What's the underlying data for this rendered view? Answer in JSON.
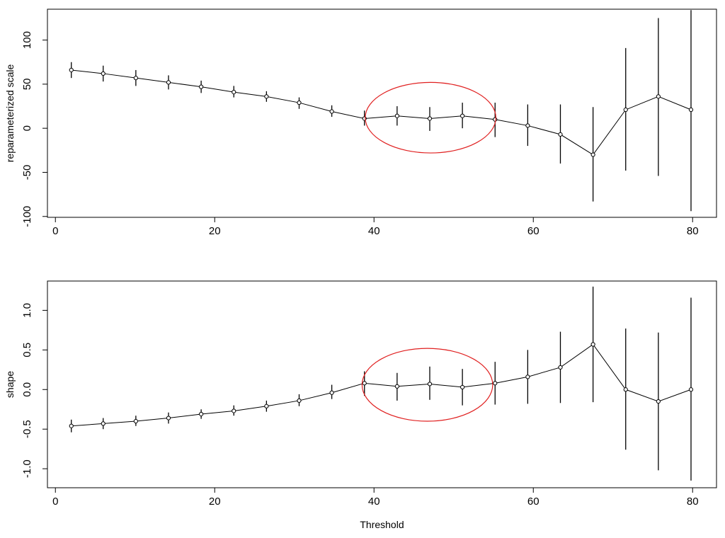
{
  "chart_data": [
    {
      "type": "line",
      "panel": "top",
      "title": "",
      "xlabel": "",
      "ylabel": "reparameterized scale",
      "xlim": [
        -1,
        83
      ],
      "ylim": [
        -101,
        135
      ],
      "x_ticks": [
        0,
        20,
        40,
        60,
        80
      ],
      "y_ticks": [
        -100,
        -50,
        0,
        50,
        100
      ],
      "grid": false,
      "series": [
        {
          "x": [
            2,
            6,
            10.1,
            14.2,
            18.3,
            22.4,
            26.5,
            30.6,
            34.7,
            38.8,
            42.9,
            47.0,
            51.1,
            55.2,
            59.3,
            63.4,
            67.5,
            71.6,
            75.7,
            79.8
          ],
          "values": [
            66,
            62,
            57,
            52,
            47,
            41,
            36,
            29,
            19,
            11,
            14,
            11,
            14,
            10,
            3,
            -7,
            -30,
            21,
            36,
            21
          ],
          "lower": [
            57,
            53,
            48,
            44,
            40,
            35,
            30,
            22,
            13,
            3,
            3,
            -3,
            0,
            -10,
            -20,
            -40,
            -83,
            -48,
            -54,
            -94
          ],
          "upper": [
            75,
            71,
            66,
            60,
            54,
            48,
            42,
            35,
            26,
            20,
            25,
            24,
            29,
            29,
            27,
            27,
            24,
            91,
            125,
            134
          ]
        }
      ],
      "annotation": {
        "shape": "ellipse",
        "color": "#e02020",
        "center": [
          47.1,
          12
        ],
        "radius_x_data": 8.2,
        "radius_y_data": 40
      }
    },
    {
      "type": "line",
      "panel": "bottom",
      "title": "",
      "xlabel": "Threshold",
      "ylabel": "shape",
      "xlim": [
        -1,
        83
      ],
      "ylim": [
        -1.24,
        1.37
      ],
      "x_ticks": [
        0,
        20,
        40,
        60,
        80
      ],
      "y_ticks": [
        -1.0,
        -0.5,
        0.0,
        0.5,
        1.0
      ],
      "y_tick_labels": [
        "-1.0",
        "-0.5",
        "0.0",
        "0.5",
        "1.0"
      ],
      "grid": false,
      "series": [
        {
          "x": [
            2,
            6,
            10.1,
            14.2,
            18.3,
            22.4,
            26.5,
            30.6,
            34.7,
            38.8,
            42.9,
            47.0,
            51.1,
            55.2,
            59.3,
            63.4,
            67.5,
            71.6,
            75.7,
            79.8
          ],
          "values": [
            -0.46,
            -0.43,
            -0.4,
            -0.36,
            -0.31,
            -0.27,
            -0.21,
            -0.14,
            -0.04,
            0.08,
            0.04,
            0.07,
            0.03,
            0.08,
            0.16,
            0.28,
            0.57,
            0.0,
            -0.15,
            0.0
          ],
          "lower": [
            -0.54,
            -0.5,
            -0.46,
            -0.43,
            -0.37,
            -0.33,
            -0.28,
            -0.21,
            -0.12,
            -0.08,
            -0.14,
            -0.13,
            -0.2,
            -0.19,
            -0.18,
            -0.17,
            -0.16,
            -0.76,
            -1.02,
            -1.15
          ],
          "upper": [
            -0.38,
            -0.36,
            -0.33,
            -0.29,
            -0.25,
            -0.2,
            -0.14,
            -0.06,
            0.06,
            0.23,
            0.21,
            0.29,
            0.26,
            0.35,
            0.5,
            0.73,
            1.3,
            0.77,
            0.72,
            1.16
          ]
        }
      ],
      "annotation": {
        "shape": "ellipse",
        "color": "#e02020",
        "center": [
          46.7,
          0.06
        ],
        "radius_x_data": 8.2,
        "radius_y_data": 0.46
      }
    }
  ]
}
